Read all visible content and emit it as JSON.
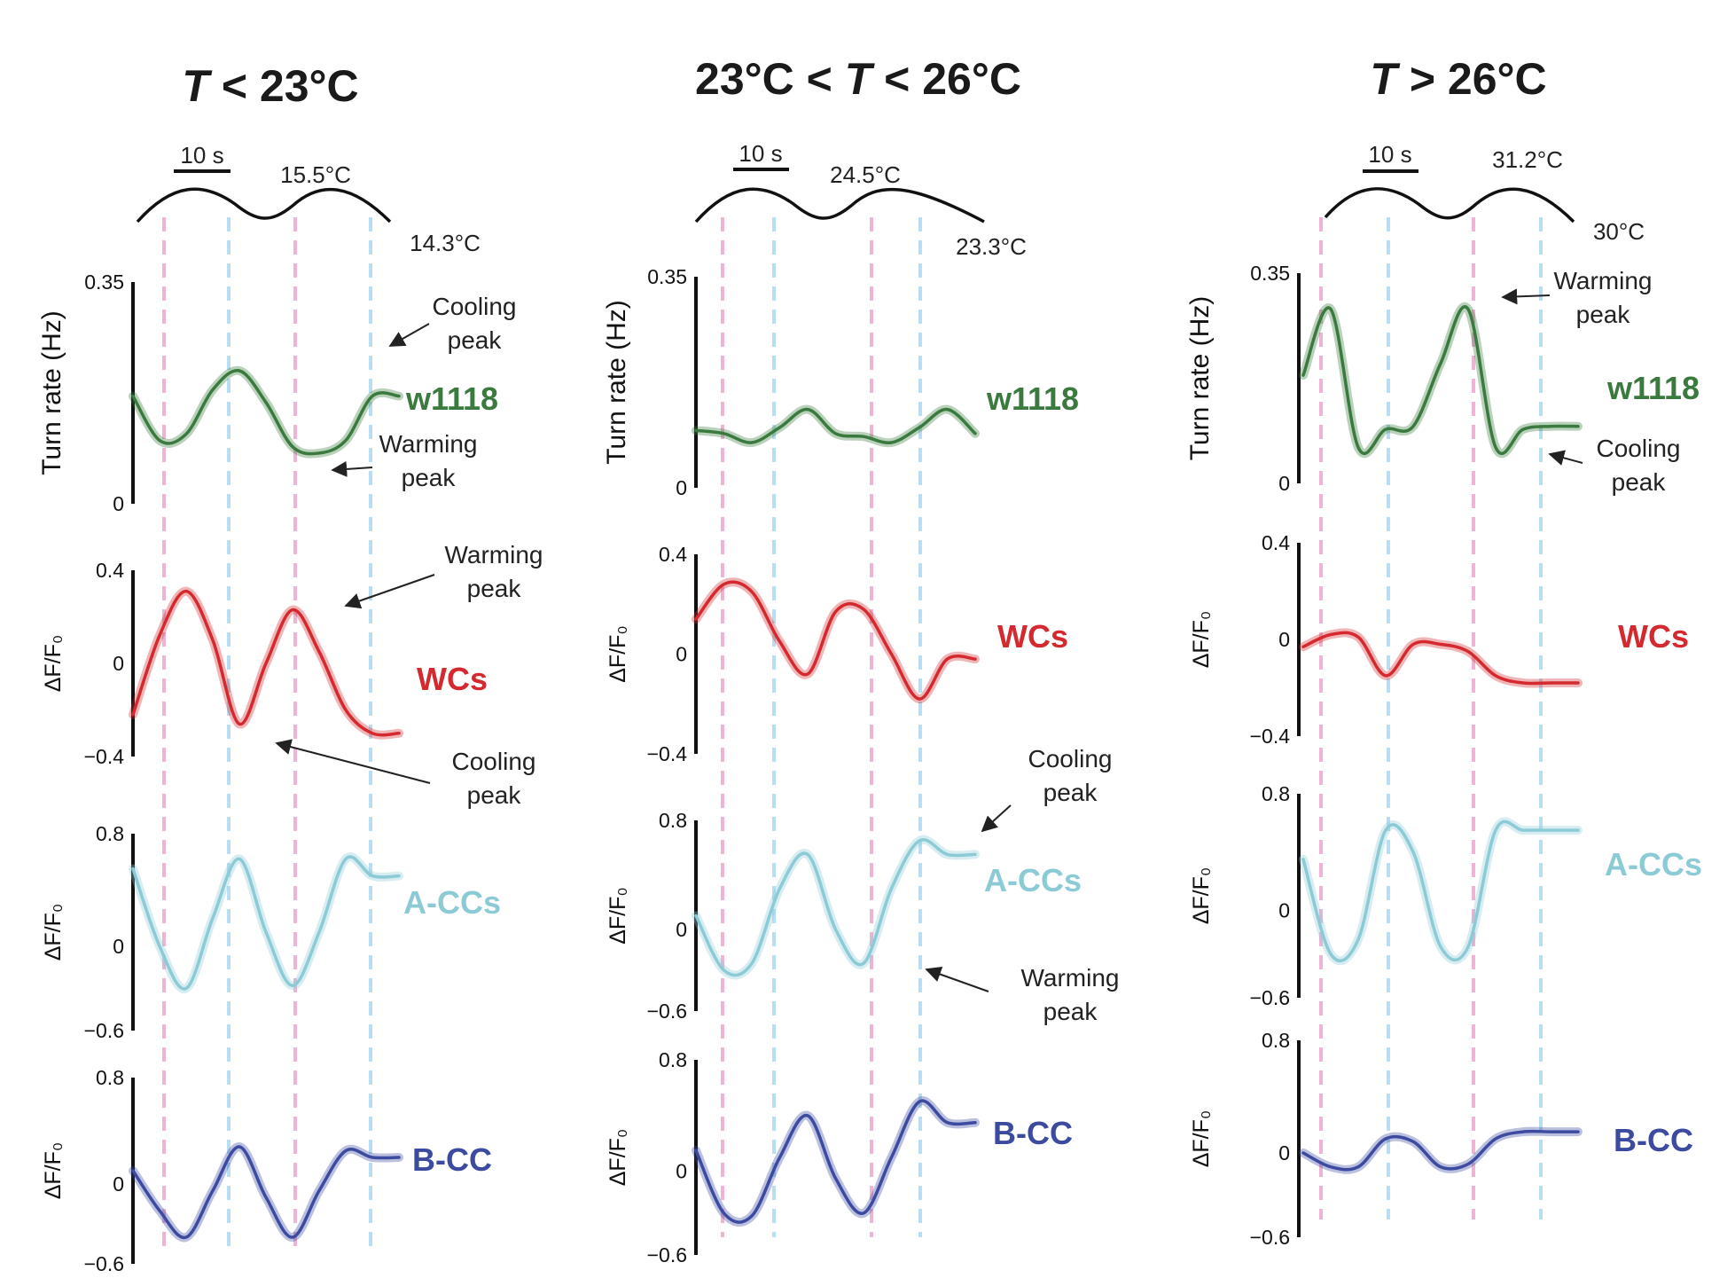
{
  "colors": {
    "w1118": "#3a7a3e",
    "WCs": "#d42a2f",
    "A-CCs": "#8ccbd6",
    "B-CC": "#3c4aa0",
    "warm_marker": "#efb3d3",
    "cool_marker": "#b9def2",
    "axis": "#111111"
  },
  "panels": [
    {
      "title_italic": "T",
      "title_rest": " < 23°C",
      "stimulus": {
        "scale_label": "10 s",
        "max_label": "15.5°C",
        "min_label": "14.3°C"
      },
      "annotations": [
        {
          "line1": "Cooling",
          "line2": "peak"
        },
        {
          "line1": "Warming",
          "line2": "peak"
        },
        {
          "line1": "Warming",
          "line2": "peak"
        },
        {
          "line1": "Cooling",
          "line2": "peak"
        }
      ]
    },
    {
      "title_italic": "T",
      "title_rest": " < 26°C",
      "title_prefix": "23°C < ",
      "stimulus": {
        "scale_label": "10 s",
        "max_label": "24.5°C",
        "min_label": "23.3°C"
      },
      "annotations": [
        {
          "line1": "Cooling",
          "line2": "peak"
        },
        {
          "line1": "Warming",
          "line2": "peak"
        }
      ]
    },
    {
      "title_italic": "T",
      "title_rest": " > 26°C",
      "stimulus": {
        "scale_label": "10 s",
        "max_label": "31.2°C",
        "min_label": "30°C"
      },
      "annotations": [
        {
          "line1": "Warming",
          "line2": "peak"
        },
        {
          "line1": "Cooling",
          "line2": "peak"
        }
      ]
    }
  ],
  "chart_data": [
    {
      "type": "line",
      "title": "T < 23°C",
      "rows": [
        {
          "series": "w1118",
          "ylabel": "Turn rate (Hz)",
          "yticks": [
            "0",
            "0.35"
          ],
          "ylim": [
            0,
            0.35
          ],
          "x": [
            0,
            5,
            10,
            15,
            20,
            25,
            30,
            35,
            40,
            45,
            50
          ],
          "values": [
            0.17,
            0.1,
            0.11,
            0.18,
            0.21,
            0.16,
            0.09,
            0.08,
            0.1,
            0.17,
            0.17
          ]
        },
        {
          "series": "WCs",
          "ylabel": "ΔF/F₀",
          "yticks": [
            "0.4",
            "0",
            "−0.4"
          ],
          "ylim": [
            -0.4,
            0.4
          ],
          "x": [
            0,
            5,
            10,
            15,
            20,
            25,
            30,
            35,
            40,
            45,
            50
          ],
          "values": [
            -0.22,
            0.12,
            0.31,
            0.1,
            -0.26,
            0.0,
            0.23,
            0.05,
            -0.2,
            -0.3,
            -0.3
          ]
        },
        {
          "series": "A-CCs",
          "ylabel": "ΔF/F₀",
          "yticks": [
            "0.8",
            "0",
            "−0.6"
          ],
          "ylim": [
            -0.6,
            0.8
          ],
          "x": [
            0,
            5,
            10,
            15,
            20,
            25,
            30,
            35,
            40,
            45,
            50
          ],
          "values": [
            0.55,
            0.0,
            -0.3,
            0.2,
            0.62,
            0.1,
            -0.28,
            0.1,
            0.62,
            0.5,
            0.5
          ]
        },
        {
          "series": "B-CC",
          "ylabel": "ΔF/F₀",
          "yticks": [
            "0.8",
            "0",
            "−0.6"
          ],
          "ylim": [
            -0.6,
            0.8
          ],
          "x": [
            0,
            5,
            10,
            15,
            20,
            25,
            30,
            35,
            40,
            45,
            50
          ],
          "values": [
            0.1,
            -0.2,
            -0.4,
            -0.05,
            0.28,
            -0.1,
            -0.4,
            -0.05,
            0.25,
            0.2,
            0.2
          ]
        }
      ]
    },
    {
      "type": "line",
      "title": "23°C < T < 26°C",
      "rows": [
        {
          "series": "w1118",
          "ylabel": "Turn rate (Hz)",
          "yticks": [
            "0",
            "0.35"
          ],
          "ylim": [
            0,
            0.35
          ],
          "x": [
            0,
            5,
            10,
            15,
            20,
            25,
            30,
            35,
            40,
            45,
            50
          ],
          "values": [
            0.095,
            0.09,
            0.075,
            0.1,
            0.13,
            0.09,
            0.085,
            0.075,
            0.1,
            0.13,
            0.09
          ]
        },
        {
          "series": "WCs",
          "ylabel": "ΔF/F₀",
          "yticks": [
            "0.4",
            "0",
            "−0.4"
          ],
          "ylim": [
            -0.4,
            0.4
          ],
          "x": [
            0,
            5,
            10,
            15,
            20,
            25,
            30,
            35,
            40,
            45,
            50
          ],
          "values": [
            0.14,
            0.28,
            0.25,
            0.05,
            -0.08,
            0.17,
            0.18,
            0.0,
            -0.18,
            -0.02,
            -0.02
          ]
        },
        {
          "series": "A-CCs",
          "ylabel": "ΔF/F₀",
          "yticks": [
            "0.8",
            "0",
            "−0.6"
          ],
          "ylim": [
            -0.6,
            0.8
          ],
          "x": [
            0,
            5,
            10,
            15,
            20,
            25,
            30,
            35,
            40,
            45,
            50
          ],
          "values": [
            0.1,
            -0.3,
            -0.25,
            0.3,
            0.55,
            0.0,
            -0.25,
            0.3,
            0.65,
            0.55,
            0.55
          ]
        },
        {
          "series": "B-CC",
          "ylabel": "ΔF/F₀",
          "yticks": [
            "0.8",
            "0",
            "−0.6"
          ],
          "ylim": [
            -0.6,
            0.8
          ],
          "x": [
            0,
            5,
            10,
            15,
            20,
            25,
            30,
            35,
            40,
            45,
            50
          ],
          "values": [
            0.15,
            -0.3,
            -0.32,
            0.1,
            0.4,
            -0.05,
            -0.3,
            0.1,
            0.5,
            0.35,
            0.35
          ]
        }
      ]
    },
    {
      "type": "line",
      "title": "T > 26°C",
      "rows": [
        {
          "series": "w1118",
          "ylabel": "Turn rate (Hz)",
          "yticks": [
            "0",
            "0.35"
          ],
          "ylim": [
            0,
            0.35
          ],
          "x": [
            0,
            5,
            10,
            15,
            20,
            25,
            30,
            35,
            40,
            45,
            50
          ],
          "values": [
            0.18,
            0.29,
            0.06,
            0.09,
            0.095,
            0.2,
            0.29,
            0.06,
            0.09,
            0.095,
            0.095
          ]
        },
        {
          "series": "WCs",
          "ylabel": "ΔF/F₀",
          "yticks": [
            "0.4",
            "0",
            "−0.4"
          ],
          "ylim": [
            -0.4,
            0.4
          ],
          "x": [
            0,
            5,
            10,
            15,
            20,
            25,
            30,
            35,
            40,
            45,
            50
          ],
          "values": [
            -0.03,
            0.02,
            0.01,
            -0.15,
            -0.02,
            -0.02,
            -0.05,
            -0.15,
            -0.18,
            -0.18,
            -0.18
          ]
        },
        {
          "series": "A-CCs",
          "ylabel": "ΔF/F₀",
          "yticks": [
            "0.8",
            "0",
            "−0.6"
          ],
          "ylim": [
            -0.6,
            0.8
          ],
          "x": [
            0,
            5,
            10,
            15,
            20,
            25,
            30,
            35,
            40,
            45,
            50
          ],
          "values": [
            0.35,
            -0.3,
            -0.2,
            0.55,
            0.4,
            -0.25,
            -0.25,
            0.55,
            0.55,
            0.55,
            0.55
          ]
        },
        {
          "series": "B-CC",
          "ylabel": "ΔF/F₀",
          "yticks": [
            "0.8",
            "0",
            "−0.6"
          ],
          "ylim": [
            -0.6,
            0.8
          ],
          "x": [
            0,
            5,
            10,
            15,
            20,
            25,
            30,
            35,
            40,
            45,
            50
          ],
          "values": [
            0.0,
            -0.1,
            -0.1,
            0.1,
            0.08,
            -0.1,
            -0.08,
            0.1,
            0.15,
            0.15,
            0.15
          ]
        }
      ]
    }
  ]
}
